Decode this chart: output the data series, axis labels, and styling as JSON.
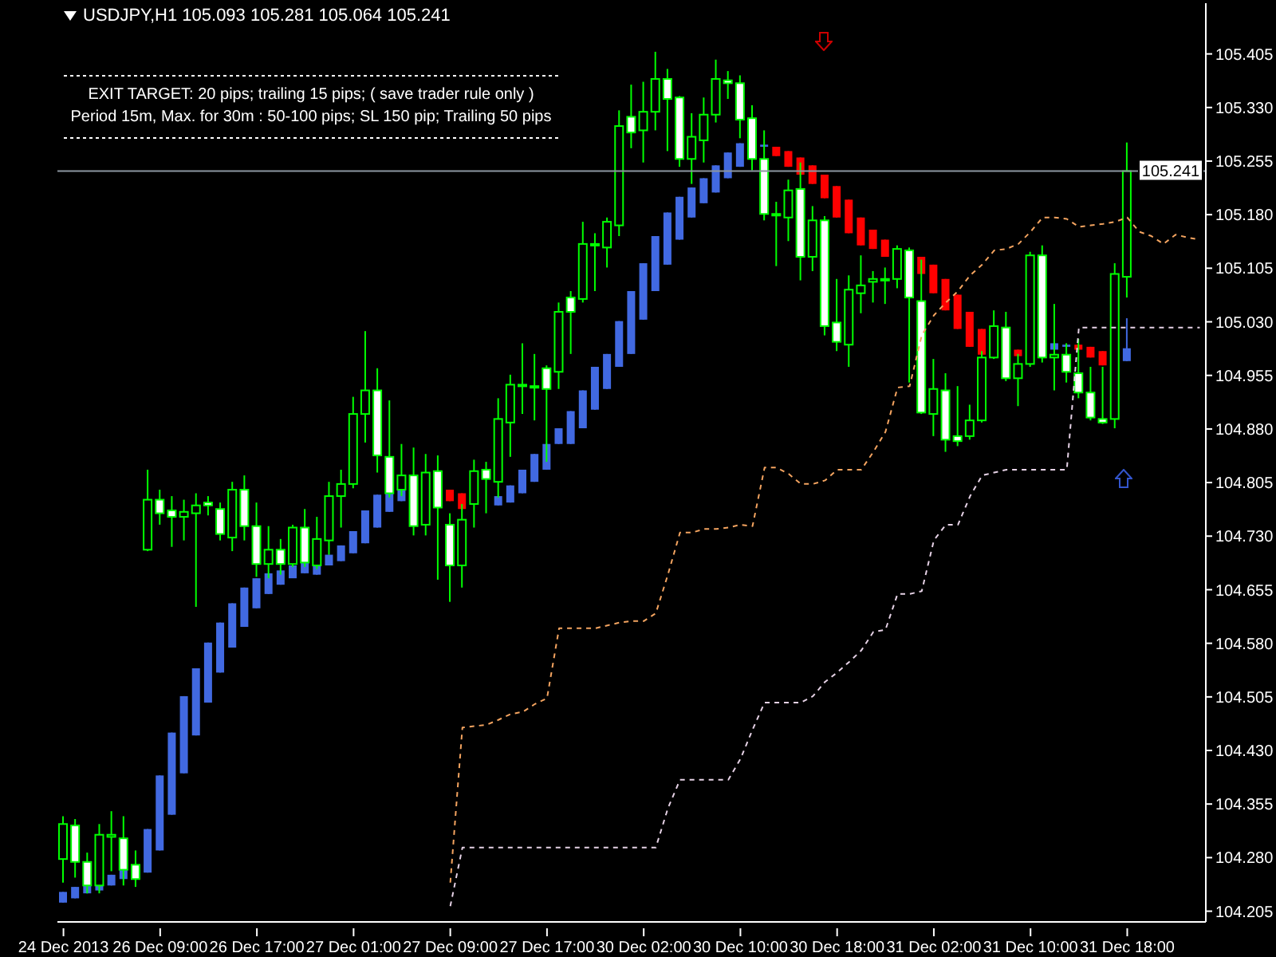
{
  "chart_data": {
    "type": "candlestick",
    "title": "USDJPY,H1  105.093 105.281 105.064 105.241",
    "annotations": [
      "EXIT TARGET: 20 pips; trailing 15 pips; ( save trader rule only )",
      "Period 15m, Max. for 30m  : 50-100 pips; SL 150 pip; Trailing 50 pips"
    ],
    "categories": [
      "24 Dec 2013",
      null,
      null,
      null,
      null,
      null,
      null,
      null,
      "26 Dec 09:00",
      null,
      null,
      null,
      null,
      null,
      null,
      null,
      "26 Dec 17:00",
      null,
      null,
      null,
      null,
      null,
      null,
      null,
      "27 Dec 01:00",
      null,
      null,
      null,
      null,
      null,
      null,
      null,
      "27 Dec 09:00",
      null,
      null,
      null,
      null,
      null,
      null,
      null,
      "27 Dec 17:00",
      null,
      null,
      null,
      null,
      null,
      null,
      null,
      "30 Dec 02:00",
      null,
      null,
      null,
      null,
      null,
      null,
      null,
      "30 Dec 10:00",
      null,
      null,
      null,
      null,
      null,
      null,
      null,
      "30 Dec 18:00",
      null,
      null,
      null,
      null,
      null,
      null,
      null,
      "31 Dec 02:00",
      null,
      null,
      null,
      null,
      null,
      null,
      null,
      "31 Dec 10:00",
      null,
      null,
      null,
      null,
      null,
      null,
      null,
      "31 Dec 18:00",
      null,
      null,
      null,
      null,
      null,
      null
    ],
    "ylim": [
      104.19,
      105.476
    ],
    "yticks": [
      104.205,
      {
        "value": 104.28,
        "label": "104.280"
      },
      104.355,
      {
        "value": 104.43,
        "label": "104.430"
      },
      104.505,
      {
        "value": 104.58,
        "label": "104.580"
      },
      104.655,
      {
        "value": 104.73,
        "label": "104.730"
      },
      104.805,
      {
        "value": 104.88,
        "label": "104.880"
      },
      104.955,
      {
        "value": 105.03,
        "label": "105.030"
      },
      105.105,
      {
        "value": 105.18,
        "label": "105.180"
      },
      105.255,
      {
        "value": 105.33,
        "label": "105.330"
      },
      105.405
    ],
    "ref_lines": [
      {
        "axis": "y",
        "value": 105.241,
        "label": "105.241",
        "color": "#8c96a0"
      }
    ],
    "series": [
      {
        "type": "line",
        "color": "#f4a460",
        "line_style": "dashed",
        "values": [
          null,
          null,
          null,
          null,
          null,
          null,
          null,
          null,
          null,
          null,
          null,
          null,
          null,
          null,
          null,
          null,
          null,
          null,
          null,
          null,
          null,
          null,
          null,
          null,
          null,
          null,
          null,
          null,
          null,
          null,
          null,
          null,
          104.245,
          104.462,
          104.464,
          104.466,
          104.473,
          104.481,
          104.484,
          104.495,
          104.503,
          104.601,
          104.601,
          104.601,
          104.601,
          104.605,
          104.609,
          104.611,
          104.611,
          104.622,
          104.676,
          104.735,
          104.735,
          104.74,
          104.74,
          104.742,
          104.746,
          104.744,
          104.826,
          104.826,
          104.817,
          104.803,
          104.803,
          104.808,
          104.823,
          104.823,
          104.823,
          104.848,
          104.876,
          104.938,
          104.94,
          105.011,
          105.039,
          105.057,
          105.073,
          105.095,
          105.11,
          105.13,
          105.132,
          105.139,
          105.156,
          105.176,
          105.176,
          105.174,
          105.163,
          105.165,
          105.167,
          105.17,
          105.176,
          105.156,
          105.15,
          105.139,
          105.152,
          105.148,
          105.145
        ]
      },
      {
        "type": "line",
        "color": "#e6d2e6",
        "line_style": "dashed",
        "values": [
          null,
          null,
          null,
          null,
          null,
          null,
          null,
          null,
          null,
          null,
          null,
          null,
          null,
          null,
          null,
          null,
          null,
          null,
          null,
          null,
          null,
          null,
          null,
          null,
          null,
          null,
          null,
          null,
          null,
          null,
          null,
          null,
          104.212,
          104.294,
          104.294,
          104.294,
          104.294,
          104.294,
          104.294,
          104.294,
          104.294,
          104.294,
          104.294,
          104.294,
          104.294,
          104.294,
          104.294,
          104.294,
          104.294,
          104.294,
          104.349,
          104.389,
          104.389,
          104.389,
          104.389,
          104.389,
          104.418,
          104.459,
          104.497,
          104.497,
          104.497,
          104.497,
          104.506,
          104.526,
          104.539,
          104.554,
          104.57,
          104.596,
          104.599,
          104.649,
          104.649,
          104.653,
          104.724,
          104.746,
          104.746,
          104.786,
          104.815,
          104.819,
          104.823,
          104.823,
          104.823,
          104.823,
          104.823,
          104.823,
          105.022,
          105.022,
          105.022,
          105.022,
          105.022,
          105.022,
          105.022,
          105.022,
          105.022,
          105.022,
          105.022
        ]
      },
      {
        "colors": [
          "#4169e1",
          "#4169e1",
          "#4169e1",
          "#4169e1",
          "#4169e1",
          "#4169e1",
          null,
          "#4169e1",
          "#4169e1",
          "#4169e1",
          "#4169e1",
          "#4169e1",
          "#4169e1",
          "#4169e1",
          "#4169e1",
          "#4169e1",
          "#4169e1",
          "#4169e1",
          "#4169e1",
          "#4169e1",
          "#4169e1",
          "#4169e1",
          "#4169e1",
          "#4169e1",
          "#4169e1",
          "#4169e1",
          "#4169e1",
          "#4169e1",
          "#4169e1",
          null,
          null,
          null,
          "#ff0000",
          "#ff0000",
          null,
          null,
          "#4169e1",
          "#4169e1",
          "#4169e1",
          "#4169e1",
          "#4169e1",
          "#4169e1",
          "#4169e1",
          "#4169e1",
          "#4169e1",
          "#4169e1",
          "#4169e1",
          "#4169e1",
          "#4169e1",
          "#4169e1",
          "#4169e1",
          "#4169e1",
          "#4169e1",
          "#4169e1",
          "#4169e1",
          "#4169e1",
          "#4169e1",
          null,
          "#4169e1",
          "#ff0000",
          "#ff0000",
          "#ff0000",
          "#ff0000",
          "#ff0000",
          "#ff0000",
          "#ff0000",
          "#ff0000",
          "#ff0000",
          "#ff0000",
          null,
          null,
          "#ff0000",
          "#ff0000",
          "#ff0000",
          "#ff0000",
          "#ff0000",
          "#ff0000",
          null,
          null,
          "#ff0000",
          null,
          null,
          "#4169e1",
          "#4169e1",
          "#ff0000",
          "#ff0000",
          "#ff0000",
          null,
          "#4169e1",
          null,
          null,
          null,
          null,
          null,
          null
        ],
        "ohlc": [
          [
            104.217,
            104.232,
            104.217,
            104.232
          ],
          [
            104.223,
            104.239,
            104.223,
            104.239
          ],
          [
            104.23,
            104.241,
            104.23,
            104.241
          ],
          [
            104.234,
            104.243,
            104.234,
            104.243
          ],
          [
            104.241,
            104.256,
            104.241,
            104.256
          ],
          [
            104.25,
            104.263,
            104.25,
            104.263
          ],
          null,
          [
            104.259,
            104.32,
            104.259,
            104.32
          ],
          [
            104.29,
            104.395,
            104.29,
            104.395
          ],
          [
            104.34,
            104.455,
            104.34,
            104.455
          ],
          [
            104.398,
            104.506,
            104.398,
            104.506
          ],
          [
            104.451,
            104.545,
            104.451,
            104.545
          ],
          [
            104.497,
            104.581,
            104.497,
            104.581
          ],
          [
            104.539,
            104.609,
            104.539,
            104.609
          ],
          [
            104.574,
            104.636,
            104.574,
            104.636
          ],
          [
            104.603,
            104.658,
            104.603,
            104.658
          ],
          [
            104.629,
            104.671,
            104.629,
            104.671
          ],
          [
            104.649,
            104.678,
            104.649,
            104.678
          ],
          [
            104.662,
            104.682,
            104.662,
            104.682
          ],
          [
            104.671,
            104.689,
            104.671,
            104.689
          ],
          [
            104.678,
            104.693,
            104.678,
            104.693
          ],
          [
            104.676,
            104.698,
            104.676,
            104.698
          ],
          [
            104.689,
            104.704,
            104.689,
            104.704
          ],
          [
            104.695,
            104.717,
            104.695,
            104.717
          ],
          [
            104.706,
            104.737,
            104.706,
            104.737
          ],
          [
            104.72,
            104.766,
            104.72,
            104.766
          ],
          [
            104.742,
            104.788,
            104.742,
            104.788
          ],
          [
            104.764,
            104.801,
            104.764,
            104.801
          ],
          [
            104.779,
            104.808,
            104.779,
            104.808
          ],
          null,
          null,
          null,
          [
            104.795,
            104.795,
            104.779,
            104.779
          ],
          [
            104.79,
            104.79,
            104.768,
            104.768
          ],
          null,
          null,
          [
            104.773,
            104.786,
            104.773,
            104.786
          ],
          [
            104.777,
            104.801,
            104.777,
            104.801
          ],
          [
            104.79,
            104.823,
            104.79,
            104.823
          ],
          [
            104.806,
            104.845,
            104.806,
            104.845
          ],
          [
            104.823,
            104.859,
            104.823,
            104.859
          ],
          [
            104.859,
            104.881,
            104.859,
            104.881
          ],
          [
            104.859,
            104.905,
            104.859,
            104.905
          ],
          [
            104.881,
            104.934,
            104.881,
            104.934
          ],
          [
            104.907,
            104.967,
            104.907,
            104.967
          ],
          [
            104.936,
            104.985,
            104.936,
            104.985
          ],
          [
            104.967,
            105.031,
            104.967,
            105.031
          ],
          [
            104.985,
            105.073,
            104.985,
            105.073
          ],
          [
            105.033,
            105.112,
            105.033,
            105.112
          ],
          [
            105.073,
            105.15,
            105.073,
            105.15
          ],
          [
            105.11,
            105.183,
            105.11,
            105.183
          ],
          [
            105.145,
            105.205,
            105.145,
            105.205
          ],
          [
            105.176,
            105.218,
            105.176,
            105.218
          ],
          [
            105.196,
            105.231,
            105.196,
            105.231
          ],
          [
            105.211,
            105.249,
            105.211,
            105.249
          ],
          [
            105.231,
            105.267,
            105.231,
            105.267
          ],
          [
            105.247,
            105.28,
            105.247,
            105.28
          ],
          null,
          [
            105.275,
            105.278,
            105.275,
            105.278
          ],
          [
            105.275,
            105.275,
            105.262,
            105.262
          ],
          [
            105.269,
            105.269,
            105.247,
            105.247
          ],
          [
            105.26,
            105.26,
            105.236,
            105.236
          ],
          [
            105.249,
            105.249,
            105.223,
            105.223
          ],
          [
            105.236,
            105.236,
            105.203,
            105.203
          ],
          [
            105.22,
            105.22,
            105.176,
            105.176
          ],
          [
            105.201,
            105.201,
            105.154,
            105.154
          ],
          [
            105.176,
            105.176,
            105.137,
            105.137
          ],
          [
            105.159,
            105.159,
            105.132,
            105.132
          ],
          [
            105.145,
            105.145,
            105.121,
            105.121
          ],
          null,
          null,
          [
            105.121,
            105.121,
            105.097,
            105.097
          ],
          [
            105.11,
            105.11,
            105.07,
            105.07
          ],
          [
            105.09,
            105.09,
            105.046,
            105.046
          ],
          [
            105.068,
            105.068,
            105.02,
            105.02
          ],
          [
            105.044,
            105.044,
            104.995,
            104.995
          ],
          [
            105.02,
            105.02,
            104.984,
            104.984
          ],
          null,
          null,
          [
            104.991,
            104.991,
            104.982,
            104.982
          ],
          null,
          null,
          [
            104.991,
            105.0,
            104.991,
            105.0
          ],
          [
            104.995,
            104.998,
            104.995,
            104.998
          ],
          [
            104.998,
            104.998,
            104.991,
            104.991
          ],
          [
            104.995,
            104.995,
            104.98,
            104.98
          ],
          [
            104.989,
            104.989,
            104.969,
            104.969
          ],
          null,
          [
            104.975,
            105.035,
            104.975,
            104.993
          ],
          null,
          null,
          null,
          null,
          null,
          null
        ]
      },
      {
        "color": "#00ff00",
        "colors": [
          "#000000",
          "#ffffff",
          "#ffffff",
          "#000000",
          "#000000",
          "#ffffff",
          "#ffffff",
          "#000000",
          "#ffffff",
          "#ffffff",
          "#000000",
          "#000000",
          "#ffffff",
          "#ffffff",
          "#000000",
          "#ffffff",
          "#ffffff",
          "#000000",
          "#ffffff",
          "#000000",
          "#ffffff",
          "#000000",
          "#000000",
          "#000000",
          "#000000",
          "#000000",
          "#ffffff",
          "#ffffff",
          "#000000",
          "#ffffff",
          "#000000",
          "#ffffff",
          "#ffffff",
          "#000000",
          "#000000",
          "#ffffff",
          "#000000",
          "#000000",
          "#ffffff",
          "#ffffff",
          "#ffffff",
          "#000000",
          "#ffffff",
          "#000000",
          "#ffffff",
          "#000000",
          "#000000",
          "#ffffff",
          "#000000",
          "#000000",
          "#ffffff",
          "#ffffff",
          "#000000",
          "#000000",
          "#000000",
          "#ffffff",
          "#ffffff",
          "#ffffff",
          "#ffffff",
          "#ffffff",
          "#000000",
          "#ffffff",
          "#000000",
          "#ffffff",
          "#ffffff",
          "#000000",
          "#000000",
          "#000000",
          "#ffffff",
          "#000000",
          "#ffffff",
          "#ffffff",
          "#000000",
          "#ffffff",
          "#ffffff",
          "#000000",
          "#000000",
          "#000000",
          "#ffffff",
          "#000000",
          "#000000",
          "#ffffff",
          "#000000",
          "#ffffff",
          "#ffffff",
          "#ffffff",
          "#ffffff",
          "#000000",
          "#000000",
          null,
          null,
          null,
          null,
          null,
          null
        ],
        "ohlc": [
          [
            104.278,
            104.338,
            104.245,
            104.327
          ],
          [
            104.325,
            104.334,
            104.252,
            104.274
          ],
          [
            104.274,
            104.287,
            104.23,
            104.241
          ],
          [
            104.241,
            104.327,
            104.23,
            104.312
          ],
          [
            104.309,
            104.345,
            104.261,
            104.312
          ],
          [
            104.307,
            104.338,
            104.241,
            104.263
          ],
          [
            104.27,
            104.29,
            104.239,
            104.25
          ],
          [
            104.711,
            104.823,
            104.709,
            104.781
          ],
          [
            104.781,
            104.795,
            104.746,
            104.762
          ],
          [
            104.766,
            104.786,
            104.715,
            104.757
          ],
          [
            104.757,
            104.781,
            104.724,
            104.764
          ],
          [
            104.762,
            104.79,
            104.631,
            104.773
          ],
          [
            104.777,
            104.786,
            104.759,
            104.773
          ],
          [
            104.768,
            104.777,
            104.724,
            104.733
          ],
          [
            104.728,
            104.806,
            104.709,
            104.795
          ],
          [
            104.795,
            104.815,
            104.724,
            104.744
          ],
          [
            104.744,
            104.777,
            104.673,
            104.691
          ],
          [
            104.691,
            104.744,
            104.671,
            104.711
          ],
          [
            104.711,
            104.726,
            104.676,
            104.691
          ],
          [
            104.691,
            104.746,
            104.687,
            104.742
          ],
          [
            104.742,
            104.768,
            104.687,
            104.693
          ],
          [
            104.689,
            104.757,
            104.684,
            104.726
          ],
          [
            104.724,
            104.806,
            104.704,
            104.786
          ],
          [
            104.786,
            104.823,
            104.742,
            104.803
          ],
          [
            104.803,
            104.925,
            104.797,
            104.901
          ],
          [
            104.901,
            105.017,
            104.861,
            104.934
          ],
          [
            104.934,
            104.965,
            104.819,
            104.843
          ],
          [
            104.841,
            104.92,
            104.784,
            104.79
          ],
          [
            104.795,
            104.859,
            104.786,
            104.815
          ],
          [
            104.815,
            104.854,
            104.731,
            104.744
          ],
          [
            104.746,
            104.845,
            104.731,
            104.819
          ],
          [
            104.821,
            104.843,
            104.669,
            104.77
          ],
          [
            104.746,
            104.762,
            104.638,
            104.689
          ],
          [
            104.689,
            104.775,
            104.658,
            104.753
          ],
          [
            104.775,
            104.837,
            104.742,
            104.821
          ],
          [
            104.823,
            104.834,
            104.762,
            104.81
          ],
          [
            104.806,
            104.923,
            104.784,
            104.894
          ],
          [
            104.889,
            104.956,
            104.841,
            104.942
          ],
          [
            104.942,
            105.0,
            104.901,
            104.94
          ],
          [
            104.94,
            104.985,
            104.892,
            104.938
          ],
          [
            104.965,
            104.969,
            104.834,
            104.936
          ],
          [
            104.96,
            105.057,
            104.936,
            105.044
          ],
          [
            105.064,
            105.073,
            104.985,
            105.044
          ],
          [
            105.062,
            105.17,
            105.057,
            105.139
          ],
          [
            105.139,
            105.154,
            105.073,
            105.137
          ],
          [
            105.134,
            105.176,
            105.106,
            105.17
          ],
          [
            105.165,
            105.326,
            105.15,
            105.304
          ],
          [
            105.317,
            105.362,
            105.273,
            105.295
          ],
          [
            105.298,
            105.366,
            105.253,
            105.324
          ],
          [
            105.324,
            105.408,
            105.298,
            105.37
          ],
          [
            105.37,
            105.384,
            105.269,
            105.342
          ],
          [
            105.344,
            105.346,
            105.247,
            105.258
          ],
          [
            105.258,
            105.322,
            105.223,
            105.289
          ],
          [
            105.284,
            105.344,
            105.253,
            105.32
          ],
          [
            105.32,
            105.397,
            105.309,
            105.37
          ],
          [
            105.368,
            105.381,
            105.342,
            105.364
          ],
          [
            105.364,
            105.375,
            105.287,
            105.313
          ],
          [
            105.315,
            105.333,
            105.242,
            105.258
          ],
          [
            105.258,
            105.298,
            105.172,
            105.181
          ],
          [
            105.181,
            105.198,
            105.108,
            105.179
          ],
          [
            105.176,
            105.229,
            105.143,
            105.214
          ],
          [
            105.216,
            105.253,
            105.088,
            105.121
          ],
          [
            105.121,
            105.192,
            105.101,
            105.172
          ],
          [
            105.172,
            105.178,
            105.011,
            105.024
          ],
          [
            105.029,
            105.09,
            104.989,
            105.002
          ],
          [
            104.998,
            105.095,
            104.967,
            105.075
          ],
          [
            105.07,
            105.123,
            105.042,
            105.081
          ],
          [
            105.086,
            105.101,
            105.057,
            105.09
          ],
          [
            105.09,
            105.106,
            105.055,
            105.088
          ],
          [
            105.09,
            105.137,
            105.077,
            105.132
          ],
          [
            105.13,
            105.134,
            104.945,
            105.064
          ],
          [
            105.059,
            105.117,
            104.901,
            104.903
          ],
          [
            104.901,
            104.978,
            104.87,
            104.936
          ],
          [
            104.934,
            104.958,
            104.848,
            104.865
          ],
          [
            104.87,
            104.94,
            104.856,
            104.863
          ],
          [
            104.87,
            104.914,
            104.865,
            104.892
          ],
          [
            104.892,
            104.989,
            104.889,
            104.98
          ],
          [
            104.98,
            105.046,
            104.978,
            105.024
          ],
          [
            105.022,
            105.044,
            104.947,
            104.951
          ],
          [
            104.951,
            104.985,
            104.912,
            104.971
          ],
          [
            104.971,
            105.128,
            104.967,
            105.123
          ],
          [
            105.123,
            105.137,
            104.973,
            104.98
          ],
          [
            104.98,
            105.055,
            104.934,
            104.984
          ],
          [
            104.984,
            105.0,
            104.945,
            104.96
          ],
          [
            104.958,
            105.006,
            104.923,
            104.931
          ],
          [
            104.931,
            104.967,
            104.892,
            104.896
          ],
          [
            104.894,
            104.967,
            104.887,
            104.889
          ],
          [
            104.894,
            105.112,
            104.881,
            105.097
          ],
          [
            105.093,
            105.281,
            105.064,
            105.241
          ],
          null,
          null,
          null,
          null,
          null,
          null
        ]
      }
    ]
  }
}
